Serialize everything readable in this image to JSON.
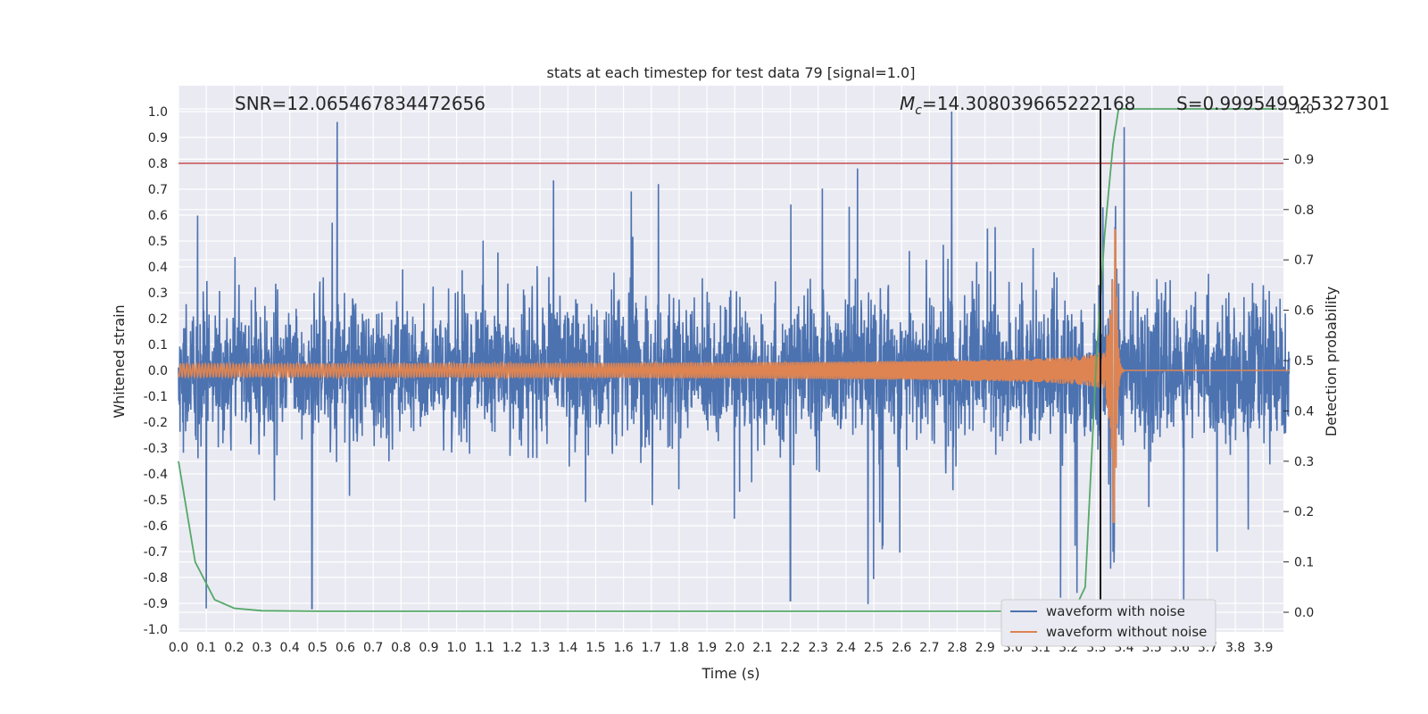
{
  "chart_data": {
    "type": "line",
    "title": "stats at each timestep for test data 79 [signal=1.0]",
    "xlabel": "Time (s)",
    "ylabel": "Whitened strain",
    "y2label": "Detection probability",
    "xlim": [
      0.0,
      4.0
    ],
    "ylim": [
      -1.05,
      1.1
    ],
    "y2lim": [
      -0.05,
      1.0
    ],
    "xticks": [
      "0.0",
      "0.1",
      "0.2",
      "0.3",
      "0.4",
      "0.5",
      "0.6",
      "0.7",
      "0.8",
      "0.9",
      "1.0",
      "1.1",
      "1.2",
      "1.3",
      "1.4",
      "1.5",
      "1.6",
      "1.7",
      "1.8",
      "1.9",
      "2.0",
      "2.1",
      "2.2",
      "2.3",
      "2.4",
      "2.5",
      "2.6",
      "2.7",
      "2.8",
      "2.9",
      "3.0",
      "3.1",
      "3.2",
      "3.3",
      "3.4",
      "3.5",
      "3.6",
      "3.7",
      "3.8",
      "3.9"
    ],
    "yticks": [
      "1.0",
      "0.9",
      "0.8",
      "0.7",
      "0.6",
      "0.5",
      "0.4",
      "0.3",
      "0.2",
      "0.1",
      "0.0",
      "-0.1",
      "-0.2",
      "-0.3",
      "-0.4",
      "-0.5",
      "-0.6",
      "-0.7",
      "-0.8",
      "-0.9",
      "-1.0"
    ],
    "y2ticks": [
      "1.0",
      "0.9",
      "0.8",
      "0.7",
      "0.6",
      "0.5",
      "0.4",
      "0.3",
      "0.2",
      "0.1",
      "0.0"
    ],
    "grid": true,
    "legend_position": "bottom-right",
    "annotations": {
      "snr": "SNR=12.065467834472656",
      "mc_symbol": "M",
      "mc_sub": "c",
      "mc_value": "=14.308039665222168",
      "s_text": "S=0.999549925327301"
    },
    "threshold_y": 0.8,
    "merger_time": 3.315,
    "series": [
      {
        "name": "waveform with noise",
        "color": "#4c72b0",
        "description_values": {
          "typical_range": [
            -0.35,
            0.35
          ],
          "peaks": [
            [
              0.57,
              0.96
            ],
            [
              2.78,
              1.0
            ],
            [
              3.4,
              0.94
            ],
            [
              0.48,
              -0.92
            ],
            [
              0.1,
              -0.92
            ],
            [
              2.2,
              -0.89
            ],
            [
              3.23,
              -0.86
            ]
          ]
        }
      },
      {
        "name": "waveform without noise",
        "color": "#dd8452",
        "chirp": {
          "start_amp": 0.025,
          "peak_time": 3.37,
          "peak_amp": 0.59,
          "min_amp": -0.5,
          "start_freq": 17,
          "end_time": 3.4
        }
      },
      {
        "name": "detection probability",
        "color": "#55a868",
        "x": [
          0.0,
          0.06,
          0.13,
          0.2,
          0.3,
          0.5,
          1.0,
          2.0,
          3.0,
          3.22,
          3.26,
          3.3,
          3.33,
          3.36,
          3.38,
          3.95
        ],
        "y": [
          0.3,
          0.1,
          0.025,
          0.008,
          0.003,
          0.002,
          0.002,
          0.002,
          0.002,
          0.003,
          0.05,
          0.5,
          0.75,
          0.93,
          1.0,
          1.0
        ]
      }
    ]
  }
}
